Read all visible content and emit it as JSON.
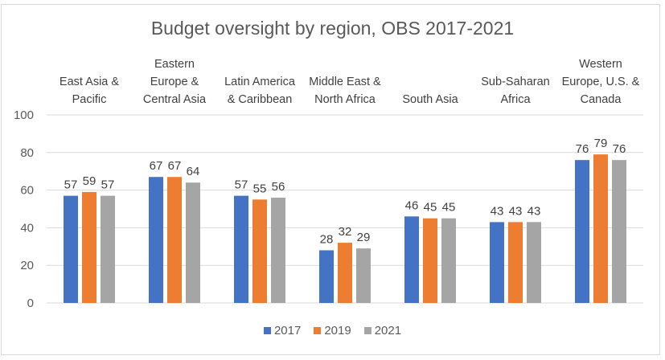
{
  "chart_data": {
    "type": "bar",
    "title": "Budget oversight by region, OBS 2017-2021",
    "xlabel": "",
    "ylabel": "",
    "ylim": [
      0,
      100
    ],
    "yticks": [
      "0",
      "20",
      "40",
      "60",
      "80",
      "100"
    ],
    "grid": true,
    "legend_position": "bottom",
    "category_axis_position": "top",
    "categories": [
      [
        "East Asia &",
        "Pacific"
      ],
      [
        "Eastern",
        "Europe &",
        "Central Asia"
      ],
      [
        "Latin America",
        "& Caribbean"
      ],
      [
        "Middle East &",
        "North Africa"
      ],
      [
        "South Asia"
      ],
      [
        "Sub-Saharan",
        "Africa"
      ],
      [
        "Western",
        "Europe, U.S. &",
        "Canada"
      ]
    ],
    "series": [
      {
        "name": "2017",
        "color": "#4472c4",
        "values": [
          57,
          67,
          57,
          28,
          46,
          43,
          76
        ]
      },
      {
        "name": "2019",
        "color": "#ed7d31",
        "values": [
          59,
          67,
          55,
          32,
          45,
          43,
          79
        ]
      },
      {
        "name": "2021",
        "color": "#a5a5a5",
        "values": [
          57,
          64,
          56,
          29,
          45,
          43,
          76
        ]
      }
    ]
  }
}
